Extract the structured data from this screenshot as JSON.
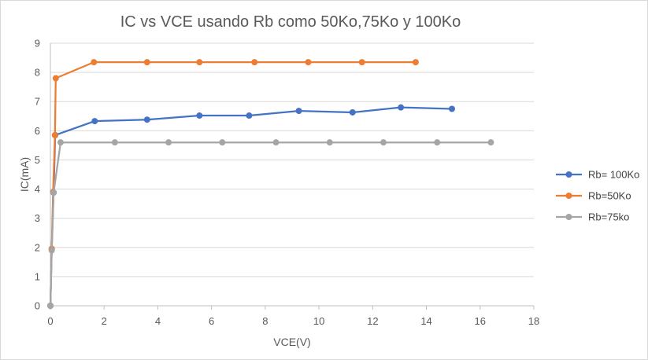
{
  "chart_data": {
    "type": "scatter",
    "title": "IC vs VCE usando Rb como 50Ko,75Ko y 100Ko",
    "xlabel": "VCE(V)",
    "ylabel": "IC(mA)",
    "xlim": [
      0,
      18
    ],
    "ylim": [
      0,
      9
    ],
    "xticks": [
      0,
      2,
      4,
      6,
      8,
      10,
      12,
      14,
      16,
      18
    ],
    "yticks": [
      0,
      1,
      2,
      3,
      4,
      5,
      6,
      7,
      8,
      9
    ],
    "grid": "horizontal",
    "legend_position": "right",
    "series": [
      {
        "name": "Rb= 100Ko",
        "color": "#4472c4",
        "x": [
          0,
          0.05,
          0.12,
          0.18,
          1.65,
          3.6,
          5.55,
          7.4,
          9.25,
          11.25,
          13.05,
          14.95
        ],
        "y": [
          0,
          1.95,
          3.88,
          5.85,
          6.33,
          6.38,
          6.52,
          6.52,
          6.68,
          6.63,
          6.8,
          6.75
        ]
      },
      {
        "name": "Rb=50Ko",
        "color": "#ed7d31",
        "x": [
          0,
          0.05,
          0.1,
          0.17,
          0.2,
          1.62,
          3.6,
          5.55,
          7.6,
          9.6,
          11.6,
          13.6
        ],
        "y": [
          0,
          1.95,
          3.9,
          5.85,
          7.8,
          8.35,
          8.35,
          8.35,
          8.35,
          8.35,
          8.35,
          8.35
        ]
      },
      {
        "name": "Rb=75ko",
        "color": "#a5a5a5",
        "x": [
          0,
          0.05,
          0.12,
          0.38,
          2.4,
          4.4,
          6.4,
          8.4,
          10.4,
          12.4,
          14.4,
          16.4
        ],
        "y": [
          0,
          1.9,
          3.88,
          5.6,
          5.6,
          5.6,
          5.6,
          5.6,
          5.6,
          5.6,
          5.6,
          5.6
        ]
      }
    ]
  }
}
